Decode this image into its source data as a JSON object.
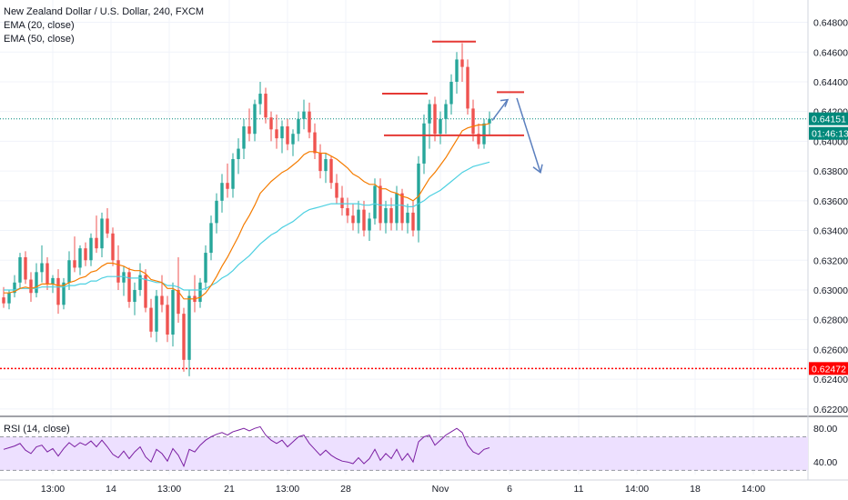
{
  "header": {
    "title": "New Zealand Dollar / U.S. Dollar, 240, FXCM",
    "ema20_label": "EMA (20, close)",
    "ema50_label": "EMA (50, close)"
  },
  "rsi_panel": {
    "label": "RSI (14, close)",
    "upper_tick": "80.00",
    "lower_tick": "40.00"
  },
  "price_axis": {
    "ticks": [
      "0.64800",
      "0.64600",
      "0.64400",
      "0.64200",
      "0.64000",
      "0.63800",
      "0.63600",
      "0.63400",
      "0.63200",
      "0.63000",
      "0.62800",
      "0.62600",
      "0.62400",
      "0.62200"
    ],
    "current_price_badge": "0.64151",
    "countdown_badge": "01:46:13",
    "support_price_badge": "0.62472"
  },
  "time_axis": {
    "ticks": [
      "13:00",
      "14",
      "13:00",
      "21",
      "13:00",
      "28",
      "Nov",
      "6",
      "11",
      "14:00",
      "18",
      "14:00"
    ]
  },
  "colors": {
    "up_candle": "#26a69a",
    "down_candle": "#ef5350",
    "ema20": "#f57c00",
    "ema50": "#4dd0e1",
    "rsi_line": "#7b1fa2",
    "rsi_band": "#ede0ff",
    "annotation_red": "#e53935",
    "annotation_arrow": "#5b7fbe",
    "current_price_badge": "#00897b",
    "support_badge": "#ff0000"
  },
  "chart_data": {
    "type": "candlestick",
    "title": "New Zealand Dollar / U.S. Dollar, 240, FXCM",
    "ylim": [
      0.6215,
      0.6495
    ],
    "rsi_ylim": [
      25,
      90
    ],
    "candles": [
      [
        0.6295,
        0.6302,
        0.6288,
        0.6291
      ],
      [
        0.6291,
        0.63,
        0.6287,
        0.6298
      ],
      [
        0.6298,
        0.631,
        0.6295,
        0.6305
      ],
      [
        0.6305,
        0.6325,
        0.6301,
        0.6322
      ],
      [
        0.6322,
        0.6326,
        0.6304,
        0.6307
      ],
      [
        0.6307,
        0.6312,
        0.6292,
        0.6298
      ],
      [
        0.6298,
        0.6318,
        0.6295,
        0.6312
      ],
      [
        0.6312,
        0.633,
        0.6305,
        0.6318
      ],
      [
        0.6318,
        0.6322,
        0.63,
        0.6304
      ],
      [
        0.6304,
        0.631,
        0.6298,
        0.6308
      ],
      [
        0.6308,
        0.6314,
        0.6284,
        0.629
      ],
      [
        0.629,
        0.6308,
        0.6287,
        0.6305
      ],
      [
        0.6305,
        0.6326,
        0.63,
        0.632
      ],
      [
        0.632,
        0.6336,
        0.6312,
        0.6315
      ],
      [
        0.6315,
        0.633,
        0.631,
        0.6328
      ],
      [
        0.6328,
        0.6332,
        0.6316,
        0.632
      ],
      [
        0.632,
        0.6338,
        0.6316,
        0.6335
      ],
      [
        0.6335,
        0.635,
        0.6325,
        0.6328
      ],
      [
        0.6328,
        0.6352,
        0.6322,
        0.6348
      ],
      [
        0.6348,
        0.6355,
        0.6335,
        0.6338
      ],
      [
        0.6338,
        0.6342,
        0.6316,
        0.632
      ],
      [
        0.632,
        0.633,
        0.63,
        0.6305
      ],
      [
        0.6305,
        0.6316,
        0.6296,
        0.6312
      ],
      [
        0.6312,
        0.6315,
        0.6288,
        0.6292
      ],
      [
        0.6292,
        0.6305,
        0.6283,
        0.63
      ],
      [
        0.63,
        0.6318,
        0.6296,
        0.631
      ],
      [
        0.631,
        0.6314,
        0.6285,
        0.6288
      ],
      [
        0.6288,
        0.6294,
        0.6268,
        0.6272
      ],
      [
        0.6272,
        0.63,
        0.6265,
        0.6296
      ],
      [
        0.6296,
        0.631,
        0.6285,
        0.629
      ],
      [
        0.629,
        0.6296,
        0.6265,
        0.627
      ],
      [
        0.627,
        0.6305,
        0.6262,
        0.63
      ],
      [
        0.63,
        0.6322,
        0.6278,
        0.6284
      ],
      [
        0.6284,
        0.6288,
        0.6245,
        0.6253
      ],
      [
        0.6253,
        0.63,
        0.6242,
        0.6296
      ],
      [
        0.6296,
        0.631,
        0.6285,
        0.6292
      ],
      [
        0.6292,
        0.6308,
        0.6288,
        0.6305
      ],
      [
        0.6305,
        0.633,
        0.63,
        0.6325
      ],
      [
        0.6325,
        0.635,
        0.632,
        0.6345
      ],
      [
        0.6345,
        0.6365,
        0.6338,
        0.636
      ],
      [
        0.636,
        0.6378,
        0.6352,
        0.6372
      ],
      [
        0.6372,
        0.6385,
        0.6362,
        0.6368
      ],
      [
        0.6368,
        0.6392,
        0.6362,
        0.6388
      ],
      [
        0.6388,
        0.6402,
        0.6378,
        0.6395
      ],
      [
        0.6395,
        0.6415,
        0.6388,
        0.641
      ],
      [
        0.641,
        0.6422,
        0.64,
        0.6405
      ],
      [
        0.6405,
        0.6428,
        0.64,
        0.6425
      ],
      [
        0.6425,
        0.644,
        0.6418,
        0.6432
      ],
      [
        0.6432,
        0.6436,
        0.6412,
        0.6416
      ],
      [
        0.6416,
        0.642,
        0.64,
        0.6408
      ],
      [
        0.6408,
        0.6418,
        0.6395,
        0.6402
      ],
      [
        0.6402,
        0.6414,
        0.6392,
        0.641
      ],
      [
        0.641,
        0.6415,
        0.6394,
        0.6398
      ],
      [
        0.6398,
        0.6408,
        0.639,
        0.6405
      ],
      [
        0.6405,
        0.642,
        0.64,
        0.6415
      ],
      [
        0.6415,
        0.6428,
        0.6408,
        0.642
      ],
      [
        0.642,
        0.6426,
        0.6402,
        0.6406
      ],
      [
        0.6406,
        0.6412,
        0.6388,
        0.6392
      ],
      [
        0.6392,
        0.6398,
        0.6375,
        0.638
      ],
      [
        0.638,
        0.6392,
        0.6372,
        0.6388
      ],
      [
        0.6388,
        0.639,
        0.6368,
        0.6372
      ],
      [
        0.6372,
        0.6378,
        0.6358,
        0.6362
      ],
      [
        0.6362,
        0.637,
        0.635,
        0.6355
      ],
      [
        0.6355,
        0.6362,
        0.6345,
        0.635
      ],
      [
        0.635,
        0.6358,
        0.634,
        0.6345
      ],
      [
        0.6345,
        0.636,
        0.6338,
        0.6354
      ],
      [
        0.6354,
        0.636,
        0.6336,
        0.634
      ],
      [
        0.634,
        0.6352,
        0.6333,
        0.6348
      ],
      [
        0.6348,
        0.6375,
        0.6344,
        0.637
      ],
      [
        0.637,
        0.6375,
        0.634,
        0.6345
      ],
      [
        0.6345,
        0.636,
        0.6338,
        0.6355
      ],
      [
        0.6355,
        0.6362,
        0.634,
        0.6345
      ],
      [
        0.6345,
        0.637,
        0.634,
        0.6365
      ],
      [
        0.6365,
        0.6368,
        0.634,
        0.6345
      ],
      [
        0.6345,
        0.6358,
        0.6338,
        0.6352
      ],
      [
        0.6352,
        0.636,
        0.6336,
        0.634
      ],
      [
        0.634,
        0.639,
        0.6332,
        0.6385
      ],
      [
        0.6385,
        0.6418,
        0.6378,
        0.6412
      ],
      [
        0.6412,
        0.6428,
        0.6395,
        0.6425
      ],
      [
        0.6425,
        0.643,
        0.64,
        0.6405
      ],
      [
        0.6405,
        0.642,
        0.6398,
        0.6415
      ],
      [
        0.6415,
        0.6428,
        0.6405,
        0.6425
      ],
      [
        0.6425,
        0.6445,
        0.6418,
        0.644
      ],
      [
        0.644,
        0.646,
        0.6432,
        0.6455
      ],
      [
        0.6455,
        0.6466,
        0.644,
        0.645
      ],
      [
        0.645,
        0.6455,
        0.6418,
        0.6422
      ],
      [
        0.6422,
        0.6428,
        0.64,
        0.6405
      ],
      [
        0.6405,
        0.6412,
        0.6395,
        0.6398
      ],
      [
        0.6398,
        0.6415,
        0.6395,
        0.6412
      ],
      [
        0.6412,
        0.642,
        0.6404,
        0.6415
      ]
    ],
    "ema20": [
      0.6298,
      0.6298,
      0.6299,
      0.6301,
      0.6302,
      0.6301,
      0.6302,
      0.6304,
      0.6304,
      0.6304,
      0.6303,
      0.6303,
      0.6305,
      0.6306,
      0.6308,
      0.6309,
      0.6312,
      0.6313,
      0.6316,
      0.6318,
      0.6318,
      0.6317,
      0.6316,
      0.6314,
      0.6313,
      0.6313,
      0.6311,
      0.6307,
      0.6306,
      0.6305,
      0.6301,
      0.6301,
      0.6299,
      0.6294,
      0.6294,
      0.6294,
      0.6295,
      0.6298,
      0.6303,
      0.6309,
      0.6316,
      0.6322,
      0.6329,
      0.6336,
      0.6344,
      0.635,
      0.6357,
      0.6365,
      0.6369,
      0.6373,
      0.6376,
      0.6379,
      0.6381,
      0.6384,
      0.6387,
      0.6391,
      0.6393,
      0.6393,
      0.6392,
      0.6392,
      0.639,
      0.6388,
      0.6385,
      0.6382,
      0.6378,
      0.6376,
      0.6373,
      0.6371,
      0.6371,
      0.6368,
      0.6368,
      0.6366,
      0.6365,
      0.6363,
      0.6362,
      0.636,
      0.6363,
      0.6369,
      0.6375,
      0.6379,
      0.6384,
      0.6389,
      0.6395,
      0.6401,
      0.6407,
      0.6409,
      0.641,
      0.6411,
      0.6411,
      0.6412
    ],
    "ema50": [
      0.63,
      0.63,
      0.63,
      0.6301,
      0.6301,
      0.6301,
      0.6301,
      0.6302,
      0.6302,
      0.6302,
      0.6302,
      0.6302,
      0.6303,
      0.6303,
      0.6304,
      0.6304,
      0.6306,
      0.6306,
      0.6308,
      0.6309,
      0.6309,
      0.6309,
      0.6309,
      0.6308,
      0.6308,
      0.6308,
      0.6307,
      0.6306,
      0.6305,
      0.6305,
      0.6303,
      0.6303,
      0.6302,
      0.63,
      0.63,
      0.63,
      0.63,
      0.6301,
      0.6303,
      0.6305,
      0.6308,
      0.631,
      0.6313,
      0.6317,
      0.632,
      0.6323,
      0.6327,
      0.6331,
      0.6334,
      0.6337,
      0.6339,
      0.6342,
      0.6344,
      0.6346,
      0.6349,
      0.6352,
      0.6354,
      0.6355,
      0.6356,
      0.6357,
      0.6358,
      0.6358,
      0.6358,
      0.6358,
      0.6358,
      0.6358,
      0.6357,
      0.6357,
      0.6358,
      0.6357,
      0.6357,
      0.6357,
      0.6357,
      0.6357,
      0.6356,
      0.6356,
      0.6358,
      0.636,
      0.6363,
      0.6365,
      0.6367,
      0.637,
      0.6373,
      0.6376,
      0.6379,
      0.6381,
      0.6383,
      0.6384,
      0.6385,
      0.6386
    ],
    "rsi": [
      55,
      57,
      59,
      62,
      54,
      50,
      58,
      60,
      52,
      56,
      47,
      56,
      63,
      58,
      63,
      60,
      65,
      58,
      66,
      58,
      49,
      45,
      53,
      44,
      52,
      58,
      46,
      40,
      55,
      50,
      41,
      56,
      48,
      35,
      55,
      52,
      60,
      66,
      70,
      73,
      75,
      72,
      76,
      78,
      80,
      77,
      80,
      82,
      72,
      66,
      62,
      66,
      58,
      64,
      70,
      72,
      62,
      55,
      48,
      54,
      48,
      44,
      41,
      40,
      38,
      45,
      38,
      44,
      55,
      42,
      50,
      44,
      55,
      42,
      50,
      40,
      64,
      70,
      72,
      60,
      66,
      72,
      76,
      80,
      75,
      60,
      52,
      49,
      55,
      57
    ],
    "annotations": {
      "support_price": 0.62472,
      "current_price": 0.64151,
      "head_line": 0.6467,
      "left_shoulder_line": 0.6432,
      "right_shoulder_line": 0.6433,
      "neckline": 0.6404
    }
  }
}
